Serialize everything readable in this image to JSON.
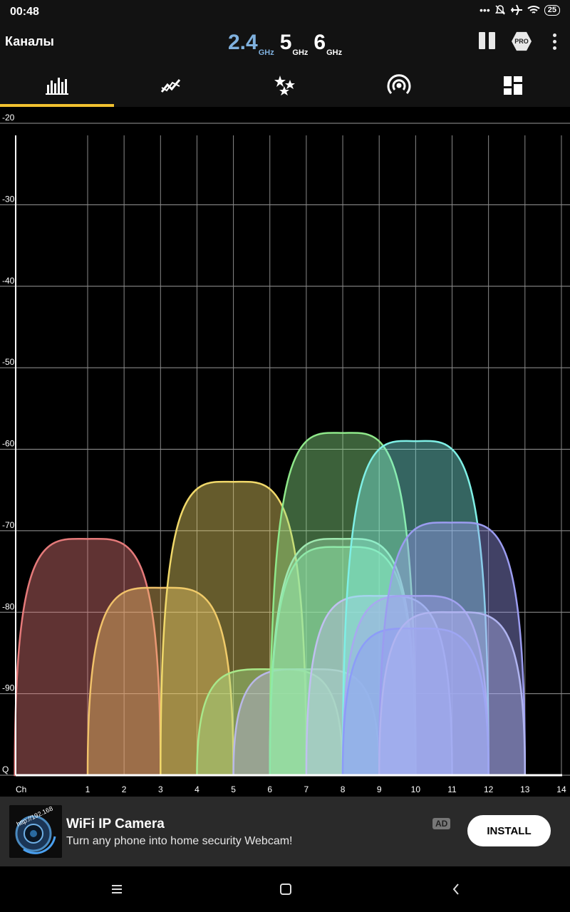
{
  "status_bar": {
    "time": "00:48",
    "battery": "25"
  },
  "app_bar": {
    "title": "Каналы",
    "bands": [
      {
        "value": "2.4",
        "unit": "GHz",
        "active": true
      },
      {
        "value": "5",
        "unit": "GHz",
        "active": false
      },
      {
        "value": "6",
        "unit": "GHz",
        "active": false
      }
    ],
    "pro_label": "PRO"
  },
  "tabs": [
    {
      "icon": "bar-chart-icon",
      "active": true
    },
    {
      "icon": "line-graph-icon",
      "active": false
    },
    {
      "icon": "stars-icon",
      "active": false
    },
    {
      "icon": "access-point-icon",
      "active": false
    },
    {
      "icon": "dashboard-icon",
      "active": false
    }
  ],
  "chart_data": {
    "type": "area",
    "y_tick_labels": [
      "-20",
      "-30",
      "-40",
      "-50",
      "-60",
      "-70",
      "-80",
      "-90",
      "Q"
    ],
    "ylim": [
      -100,
      -20
    ],
    "x_axis_label": "Ch",
    "x_tick_labels": [
      "1",
      "2",
      "3",
      "4",
      "5",
      "6",
      "7",
      "8",
      "9",
      "10",
      "11",
      "12",
      "13",
      "14"
    ],
    "xlim": [
      -1,
      14
    ],
    "grid": true,
    "series": [
      {
        "channel": 1,
        "signal": -71,
        "color": "#e57a7a"
      },
      {
        "channel": 3,
        "signal": -77,
        "color": "#f1c26a"
      },
      {
        "channel": 5,
        "signal": -64,
        "color": "#f0d86a"
      },
      {
        "channel": 6,
        "signal": -87,
        "color": "#a8e88a"
      },
      {
        "channel": 7,
        "signal": -87,
        "color": "#b9b8e8"
      },
      {
        "channel": 8,
        "signal": -58,
        "color": "#8fe88a"
      },
      {
        "channel": 8,
        "signal": -71,
        "color": "#9fe8b0"
      },
      {
        "channel": 8,
        "signal": -72,
        "color": "#8fe8a8"
      },
      {
        "channel": 9,
        "signal": -78,
        "color": "#c0c0f0"
      },
      {
        "channel": 10,
        "signal": -59,
        "color": "#7ff0e6"
      },
      {
        "channel": 10,
        "signal": -78,
        "color": "#a8a8f0"
      },
      {
        "channel": 10,
        "signal": -82,
        "color": "#8c9cf8"
      },
      {
        "channel": 11,
        "signal": -69,
        "color": "#9b9cf0"
      },
      {
        "channel": 11,
        "signal": -80,
        "color": "#b0b4f0"
      }
    ]
  },
  "ad": {
    "title": "WiFi IP Camera",
    "description": "Turn any phone into home security Webcam!",
    "badge": "AD",
    "install_label": "INSTALL",
    "thumb_text": "http://192.168"
  }
}
